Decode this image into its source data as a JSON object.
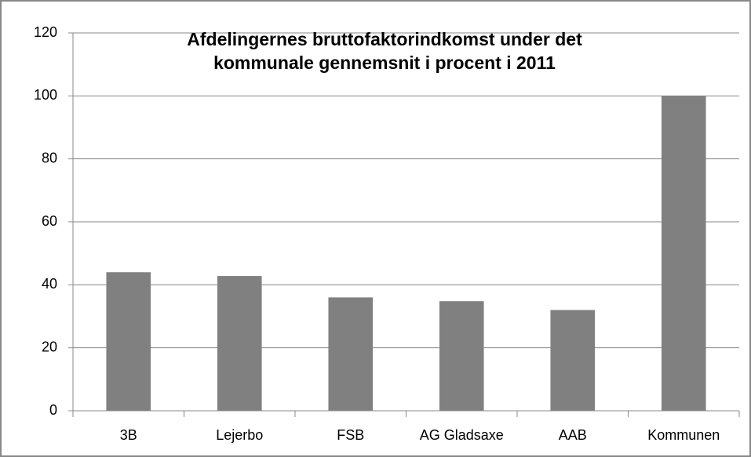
{
  "chart_data": {
    "type": "bar",
    "title": [
      "Afdelingernes bruttofaktorindkomst under det",
      "kommunale gennemsnit i procent i 2011"
    ],
    "categories": [
      "3B",
      "Lejerbo",
      "FSB",
      "AG Gladsaxe",
      "AAB",
      "Kommunen"
    ],
    "values": [
      44,
      42.8,
      36,
      34.8,
      32,
      100
    ],
    "color": "#808080",
    "ylim": [
      0,
      120
    ],
    "yticks": [
      0,
      20,
      40,
      60,
      80,
      100,
      120
    ],
    "grid": true
  }
}
